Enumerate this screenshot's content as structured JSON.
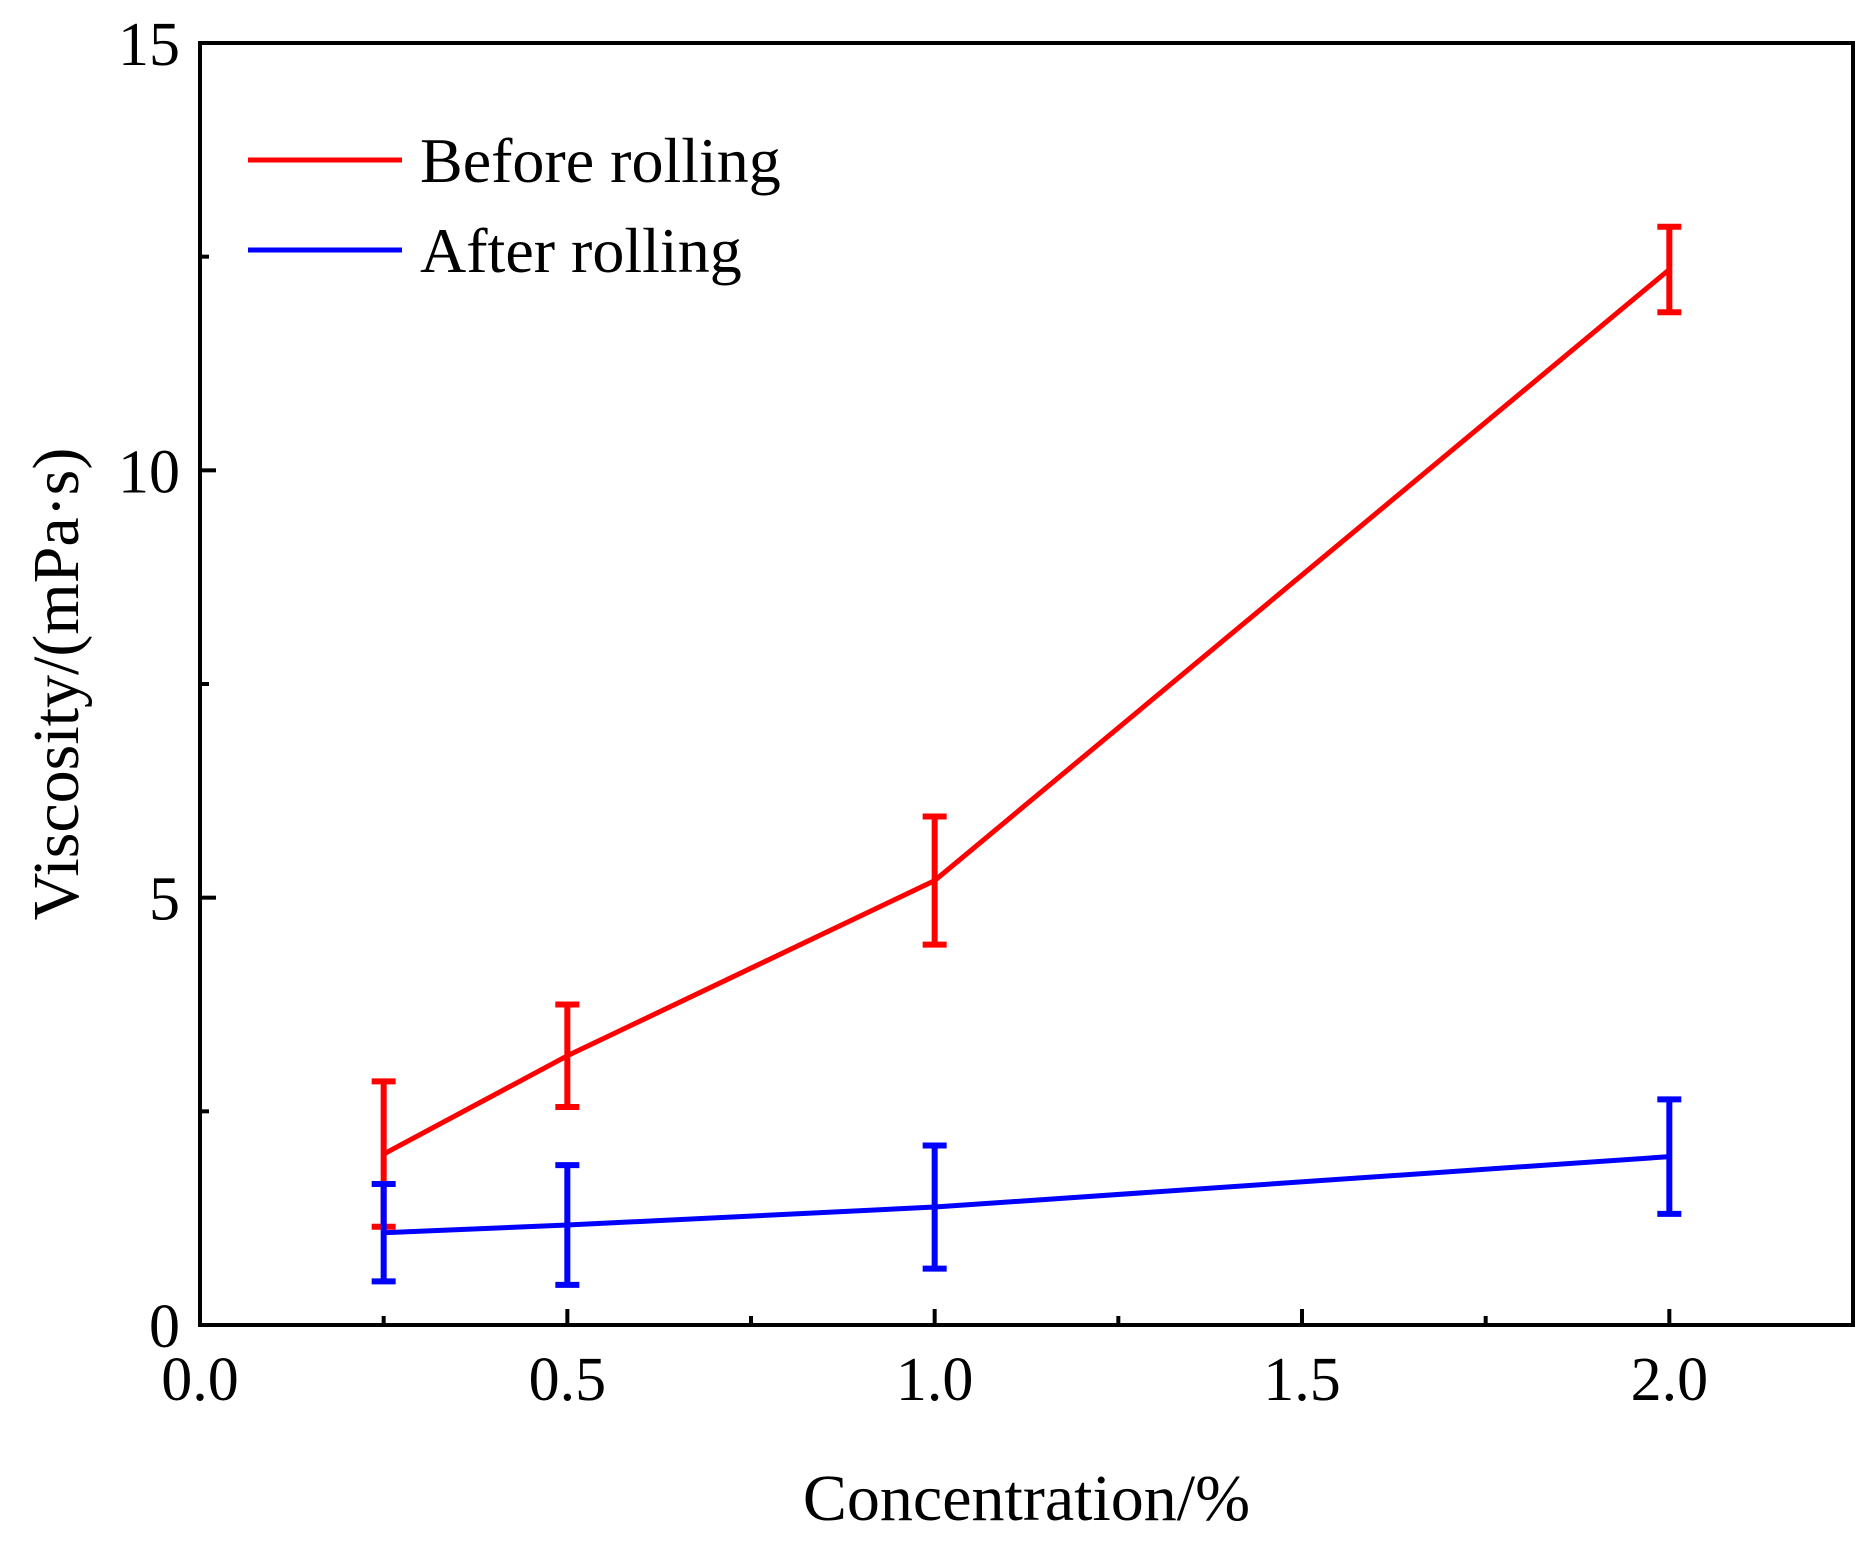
{
  "chart_data": {
    "type": "line",
    "title": "",
    "xlabel": "Concentration/%",
    "ylabel": "Viscosity/(mPa·s)",
    "xlim": [
      0,
      2.25
    ],
    "ylim": [
      0,
      15
    ],
    "x_ticks": [
      {
        "value": 0,
        "label": "0.0"
      },
      {
        "value": 0.5,
        "label": "0.5"
      },
      {
        "value": 1.0,
        "label": "1.0"
      },
      {
        "value": 1.5,
        "label": "1.5"
      },
      {
        "value": 2.0,
        "label": "2.0"
      }
    ],
    "x_minor_ticks": [
      0.25,
      0.75,
      1.25,
      1.75
    ],
    "y_ticks": [
      {
        "value": 0,
        "label": "0"
      },
      {
        "value": 5,
        "label": "5"
      },
      {
        "value": 10,
        "label": "10"
      },
      {
        "value": 15,
        "label": "15"
      }
    ],
    "y_minor_ticks": [
      2.5,
      7.5,
      12.5
    ],
    "grid": false,
    "legend_position": "top-left",
    "series": [
      {
        "name": "Before rolling",
        "color": "#ff0000",
        "x": [
          0.25,
          0.5,
          1.0,
          2.0
        ],
        "values": [
          2.0,
          3.15,
          5.2,
          12.35
        ],
        "error": [
          0.85,
          0.6,
          0.75,
          0.5
        ]
      },
      {
        "name": "After rolling",
        "color": "#0000ff",
        "x": [
          0.25,
          0.5,
          1.0,
          2.0
        ],
        "values": [
          1.08,
          1.17,
          1.38,
          1.97
        ],
        "error": [
          0.57,
          0.7,
          0.72,
          0.67
        ]
      }
    ]
  }
}
